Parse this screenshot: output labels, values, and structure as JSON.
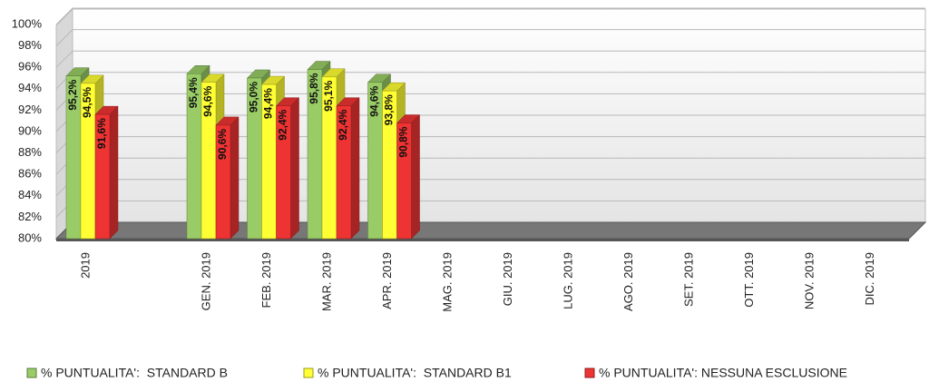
{
  "chart_data": {
    "type": "bar3d",
    "categories": [
      "2019",
      null,
      "GEN. 2019",
      "FEB. 2019",
      "MAR. 2019",
      "APR. 2019",
      "MAG. 2019",
      "GIU. 2019",
      "LUG. 2019",
      "AGO. 2019",
      "SET. 2019",
      "OTT. 2019",
      "NOV. 2019",
      "DIC. 2019"
    ],
    "series": [
      {
        "name": "% PUNTUALITA':  STANDARD B",
        "color": "#99cc66",
        "values": [
          95.2,
          null,
          95.4,
          95.0,
          95.8,
          94.6,
          null,
          null,
          null,
          null,
          null,
          null,
          null,
          null
        ],
        "value_labels": [
          "95,2%",
          null,
          "95,4%",
          "95,0%",
          "95,8%",
          "94,6%",
          null,
          null,
          null,
          null,
          null,
          null,
          null,
          null
        ]
      },
      {
        "name": "% PUNTUALITA':  STANDARD B1",
        "color": "#ffff33",
        "values": [
          94.5,
          null,
          94.6,
          94.4,
          95.1,
          93.8,
          null,
          null,
          null,
          null,
          null,
          null,
          null,
          null
        ],
        "value_labels": [
          "94,5%",
          null,
          "94,6%",
          "94,4%",
          "95,1%",
          "93,8%",
          null,
          null,
          null,
          null,
          null,
          null,
          null,
          null
        ]
      },
      {
        "name": "% PUNTUALITA': NESSUNA ESCLUSIONE",
        "color": "#ee3333",
        "values": [
          91.6,
          null,
          90.6,
          92.4,
          92.4,
          90.8,
          null,
          null,
          null,
          null,
          null,
          null,
          null,
          null
        ],
        "value_labels": [
          "91,6%",
          null,
          "90,6%",
          "92,4%",
          "92,4%",
          "90,8%",
          null,
          null,
          null,
          null,
          null,
          null,
          null,
          null
        ]
      }
    ],
    "ylim": [
      80,
      100
    ],
    "yticks": [
      {
        "value": 80,
        "label": "80%"
      },
      {
        "value": 82,
        "label": "82%"
      },
      {
        "value": 84,
        "label": "84%"
      },
      {
        "value": 86,
        "label": "86%"
      },
      {
        "value": 88,
        "label": "88%"
      },
      {
        "value": 90,
        "label": "90%"
      },
      {
        "value": 92,
        "label": "92%"
      },
      {
        "value": 94,
        "label": "94%"
      },
      {
        "value": 96,
        "label": "96%"
      },
      {
        "value": 98,
        "label": "98%"
      },
      {
        "value": 100,
        "label": "100%"
      }
    ],
    "grid": true,
    "legend": "bottom"
  }
}
